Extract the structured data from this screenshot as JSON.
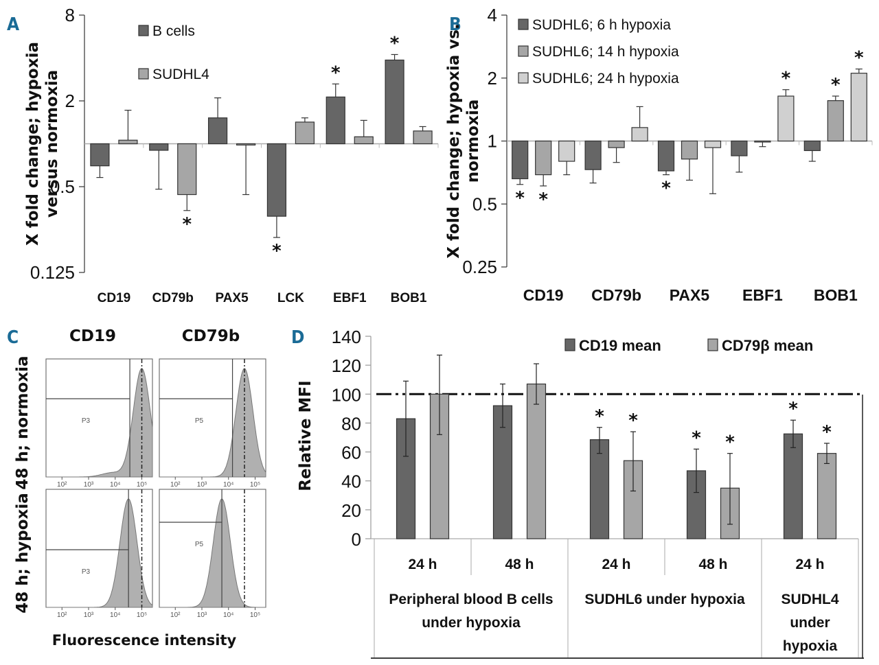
{
  "panels": {
    "A": {
      "letter": "A"
    },
    "B": {
      "letter": "B"
    },
    "C": {
      "letter": "C"
    },
    "D": {
      "letter": "D"
    }
  },
  "colors": {
    "dark": "#666666",
    "mid": "#a6a6a6",
    "light": "#d0d0d0",
    "accent": "#1a6b96",
    "hist_fill": "#b0b0b0"
  },
  "chart_data": [
    {
      "id": "A",
      "type": "bar",
      "scale": "log2",
      "baseline": 1,
      "ylabel_lines": [
        "X fold change; hypoxia",
        "versus normoxia"
      ],
      "yticks": [
        0.125,
        0.5,
        2,
        8
      ],
      "ytick_labels": [
        "0.125",
        "0.5",
        "2",
        "8"
      ],
      "ylim": [
        0.125,
        8
      ],
      "categories": [
        "CD19",
        "CD79b",
        "PAX5",
        "LCK",
        "EBF1",
        "BOB1"
      ],
      "series": [
        {
          "name": "B cells",
          "color": "dark",
          "values": [
            0.7,
            0.9,
            1.52,
            0.31,
            2.13,
            3.87
          ],
          "err_end": [
            0.58,
            0.48,
            2.1,
            0.22,
            2.63,
            4.23
          ],
          "significant": [
            false,
            false,
            false,
            true,
            true,
            true
          ]
        },
        {
          "name": "SUDHL4",
          "color": "mid",
          "values": [
            1.06,
            0.44,
            0.98,
            1.42,
            1.12,
            1.23
          ],
          "err_end": [
            1.72,
            0.34,
            0.44,
            1.52,
            1.46,
            1.32
          ],
          "significant": [
            false,
            true,
            false,
            false,
            false,
            false
          ]
        }
      ],
      "legend": "top-left"
    },
    {
      "id": "B",
      "type": "bar",
      "scale": "log2",
      "baseline": 1,
      "ylabel_lines": [
        "X fold change; hypoxia vs.",
        "normoxia"
      ],
      "yticks": [
        0.25,
        0.5,
        1,
        2,
        4
      ],
      "ytick_labels": [
        "0.25",
        "0.5",
        "1",
        "2",
        "4"
      ],
      "ylim": [
        0.25,
        4
      ],
      "categories": [
        "CD19",
        "CD79b",
        "PAX5",
        "EBF1",
        "BOB1"
      ],
      "series": [
        {
          "name": "SUDHL6; 6 h hypoxia",
          "color": "dark",
          "values": [
            0.66,
            0.73,
            0.72,
            0.85,
            0.9
          ],
          "err_end": [
            0.62,
            0.63,
            0.69,
            0.71,
            0.8
          ],
          "significant": [
            true,
            false,
            true,
            false,
            false
          ]
        },
        {
          "name": "SUDHL6; 14 h hypoxia",
          "color": "mid",
          "values": [
            0.69,
            0.93,
            0.82,
            0.99,
            1.56
          ],
          "err_end": [
            0.61,
            0.79,
            0.65,
            0.94,
            1.64
          ],
          "significant": [
            true,
            false,
            false,
            false,
            true
          ]
        },
        {
          "name": "SUDHL6; 24 h hypoxia",
          "color": "light",
          "values": [
            0.8,
            1.16,
            0.93,
            1.64,
            2.11
          ],
          "err_end": [
            0.69,
            1.46,
            0.56,
            1.76,
            2.21
          ],
          "significant": [
            false,
            false,
            false,
            true,
            true
          ]
        }
      ],
      "legend": "top-left"
    },
    {
      "id": "C",
      "type": "histogram",
      "column_titles": [
        "CD19",
        "CD79b"
      ],
      "row_titles": [
        "48 h; normoxia",
        "48 h; hypoxia"
      ],
      "xlabel": "Fluorescence intensity",
      "gates": [
        [
          "P3",
          "P5"
        ],
        [
          "P3",
          "P5"
        ]
      ],
      "peak_log10": [
        [
          5.0,
          4.6
        ],
        [
          4.5,
          3.75
        ]
      ],
      "reference_line_log10": [
        5.0,
        4.6
      ],
      "xtick_labels": [
        "10²",
        "10³",
        "10⁴",
        "10⁵"
      ]
    },
    {
      "id": "D",
      "type": "bar",
      "ylabel": "Relative MFI",
      "yticks": [
        0,
        20,
        40,
        60,
        80,
        100,
        120,
        140
      ],
      "ylim": [
        0,
        140
      ],
      "reference_line": 100,
      "categories": [
        "24 h",
        "48 h",
        "24 h",
        "48 h",
        "24 h"
      ],
      "groups": [
        {
          "label": "Peripheral blood B cells under hypoxia",
          "lines": [
            "Peripheral blood B cells",
            "under hypoxia"
          ],
          "span": 2
        },
        {
          "label": "SUDHL6 under hypoxia",
          "lines": [
            "SUDHL6 under hypoxia"
          ],
          "span": 2
        },
        {
          "label": "SUDHL4 under hypoxia",
          "lines": [
            "SUDHL4",
            "under",
            "hypoxia"
          ],
          "span": 1
        }
      ],
      "series": [
        {
          "name": "CD19 mean",
          "color": "dark",
          "values": [
            83,
            92,
            68.5,
            47,
            72.5
          ],
          "err_low": [
            57,
            77,
            59,
            32,
            63
          ],
          "err_high": [
            109,
            107,
            77,
            62,
            82
          ],
          "significant": [
            false,
            false,
            true,
            true,
            true
          ]
        },
        {
          "name": "CD79β mean",
          "color": "mid",
          "values": [
            100,
            107,
            54,
            35,
            59
          ],
          "err_low": [
            72,
            93,
            33,
            10,
            52
          ],
          "err_high": [
            127,
            121,
            74,
            59,
            66
          ],
          "significant": [
            false,
            false,
            true,
            true,
            true
          ]
        }
      ],
      "legend": "top-right"
    }
  ],
  "star_symbol": "*"
}
